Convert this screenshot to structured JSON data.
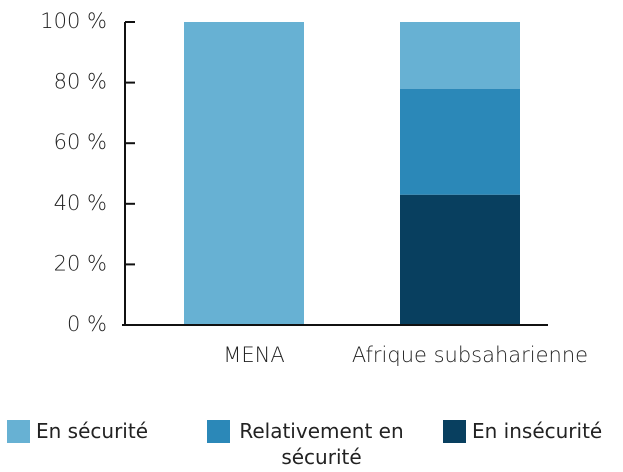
{
  "chart_data": {
    "type": "stacked_bar",
    "categories": [
      "MENA",
      "Afrique subsaharienne"
    ],
    "series": [
      {
        "name": "En sécurité",
        "color": "#67b1d3",
        "values": [
          100,
          22
        ]
      },
      {
        "name": "Relativement en sécurité",
        "color": "#2b88b8",
        "values": [
          0,
          35
        ]
      },
      {
        "name": "En insécurité",
        "color": "#083f5f",
        "values": [
          0,
          43
        ]
      }
    ],
    "ylim": [
      0,
      100
    ],
    "yticks": [
      {
        "value": 0,
        "label": "0 %"
      },
      {
        "value": 20,
        "label": "20 %"
      },
      {
        "value": 40,
        "label": "40 %"
      },
      {
        "value": 60,
        "label": "60 %"
      },
      {
        "value": 80,
        "label": "80 %"
      },
      {
        "value": 100,
        "label": "100 %"
      }
    ],
    "legend": "bottom"
  }
}
